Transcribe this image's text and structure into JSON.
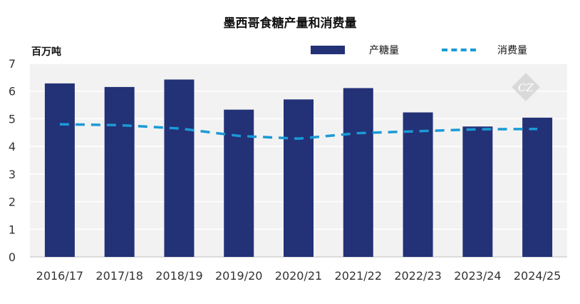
{
  "chart_data": {
    "type": "bar",
    "title": "墨西哥食糖产量和消费量",
    "unit": "百万吨",
    "categories": [
      "2016/17",
      "2017/18",
      "2018/19",
      "2019/20",
      "2020/21",
      "2021/22",
      "2022/23",
      "2023/24",
      "2024/25"
    ],
    "series": [
      {
        "name": "产糖量",
        "kind": "bar",
        "color": "#233177",
        "values": [
          6.28,
          6.15,
          6.42,
          5.33,
          5.7,
          6.11,
          5.23,
          4.72,
          5.04
        ]
      },
      {
        "name": "消费量",
        "kind": "line",
        "style": "dashed",
        "color": "#1a9ad6",
        "values": [
          4.8,
          4.77,
          4.65,
          4.38,
          4.28,
          4.48,
          4.55,
          4.62,
          4.63
        ]
      }
    ],
    "ylim": [
      0,
      7
    ],
    "yticks": [
      0,
      1,
      2,
      3,
      4,
      5,
      6,
      7
    ],
    "grid": true,
    "legend_position": "top-right"
  },
  "watermark": {
    "label": "CZ"
  },
  "colors": {
    "plot_background": "#f2f2f2",
    "grid": "#ffffff"
  }
}
